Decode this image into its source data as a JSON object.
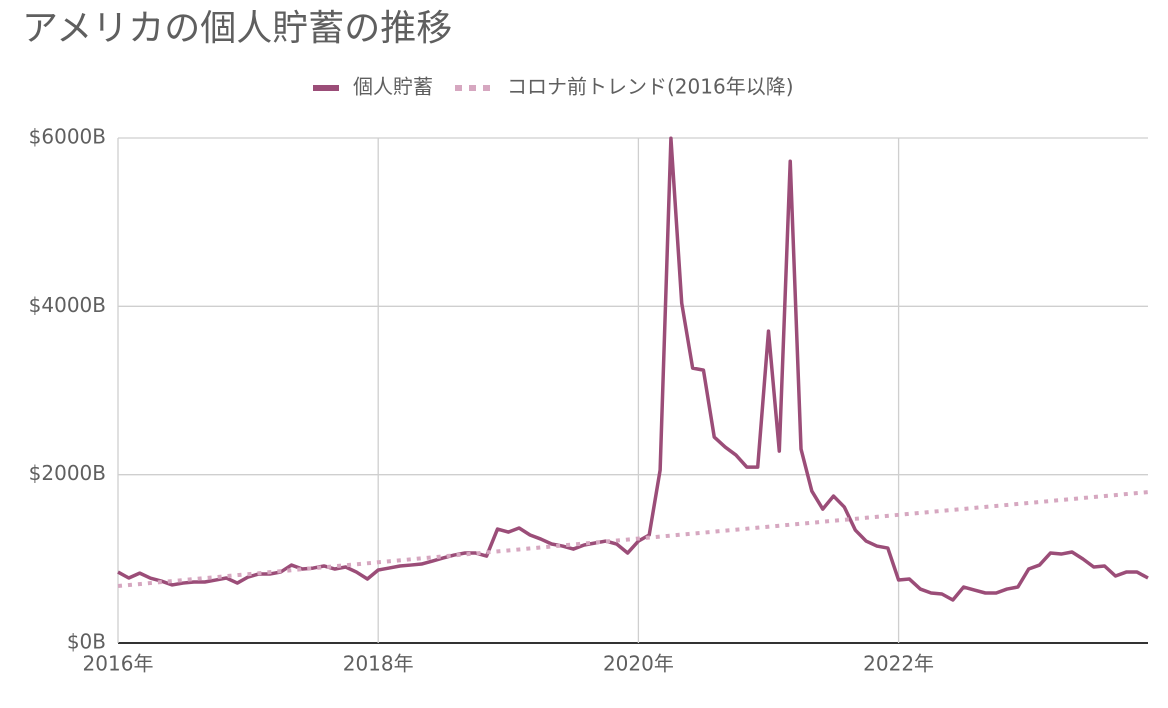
{
  "chart_data": {
    "type": "line",
    "title": "アメリカの個人貯蓄の推移",
    "x": [
      2016,
      2016.083,
      2016.167,
      2016.25,
      2016.333,
      2016.417,
      2016.5,
      2016.583,
      2016.667,
      2016.75,
      2016.833,
      2016.917,
      2017,
      2017.083,
      2017.167,
      2017.25,
      2017.333,
      2017.417,
      2017.5,
      2017.583,
      2017.667,
      2017.75,
      2017.833,
      2017.917,
      2018,
      2018.083,
      2018.167,
      2018.25,
      2018.333,
      2018.417,
      2018.5,
      2018.583,
      2018.667,
      2018.75,
      2018.833,
      2018.917,
      2019,
      2019.083,
      2019.167,
      2019.25,
      2019.333,
      2019.417,
      2019.5,
      2019.583,
      2019.667,
      2019.75,
      2019.833,
      2019.917,
      2020,
      2020.083,
      2020.167,
      2020.25,
      2020.333,
      2020.417,
      2020.5,
      2020.583,
      2020.667,
      2020.75,
      2020.833,
      2020.917,
      2021,
      2021.083,
      2021.167,
      2021.25,
      2021.333,
      2021.417,
      2021.5,
      2021.583,
      2021.667,
      2021.75,
      2021.833,
      2021.917,
      2022,
      2022.083,
      2022.167,
      2022.25,
      2022.333,
      2022.417,
      2022.5,
      2022.583,
      2022.667,
      2022.75,
      2022.833,
      2022.917,
      2023,
      2023.083,
      2023.167,
      2023.25,
      2023.333,
      2023.417,
      2023.5,
      2023.583,
      2023.667,
      2023.75,
      2023.833,
      2023.917
    ],
    "series": [
      {
        "name": "個人貯蓄",
        "color": "#9b4d78",
        "style": "solid",
        "values": [
          843,
          772,
          830,
          770,
          736,
          690,
          712,
          725,
          725,
          748,
          772,
          712,
          784,
          820,
          820,
          843,
          926,
          879,
          890,
          915,
          879,
          903,
          843,
          760,
          867,
          890,
          915,
          926,
          938,
          974,
          1010,
          1045,
          1069,
          1069,
          1033,
          1354,
          1318,
          1366,
          1283,
          1235,
          1176,
          1152,
          1116,
          1164,
          1188,
          1211,
          1176,
          1069,
          1211,
          1283,
          2055,
          5997,
          4038,
          3266,
          3242,
          2447,
          2328,
          2233,
          2090,
          2090,
          3705,
          2280,
          5724,
          2304,
          1805,
          1591,
          1746,
          1615,
          1342,
          1211,
          1152,
          1128,
          748,
          760,
          641,
          594,
          582,
          511,
          665,
          629,
          594,
          594,
          641,
          665,
          879,
          926,
          1069,
          1057,
          1081,
          998,
          903,
          915,
          796,
          843,
          843,
          772
        ]
      },
      {
        "name": "コロナ前トレンド(2016年以降)",
        "color": "#d6a7c0",
        "style": "dotted",
        "x": [
          2016,
          2023.917
        ],
        "values": [
          677,
          1793
        ]
      }
    ],
    "xlim": [
      2016,
      2023.917
    ],
    "xticks": [
      {
        "value": 2016,
        "label": "2016年"
      },
      {
        "value": 2018,
        "label": "2018年"
      },
      {
        "value": 2020,
        "label": "2020年"
      },
      {
        "value": 2022,
        "label": "2022年"
      }
    ],
    "ylim": [
      0,
      6000
    ],
    "yticks": [
      {
        "value": 0,
        "label": "$0B"
      },
      {
        "value": 2000,
        "label": "$2000B"
      },
      {
        "value": 4000,
        "label": "$4000B"
      },
      {
        "value": 6000,
        "label": "$6000B"
      }
    ],
    "grid": true,
    "legend": "top"
  }
}
